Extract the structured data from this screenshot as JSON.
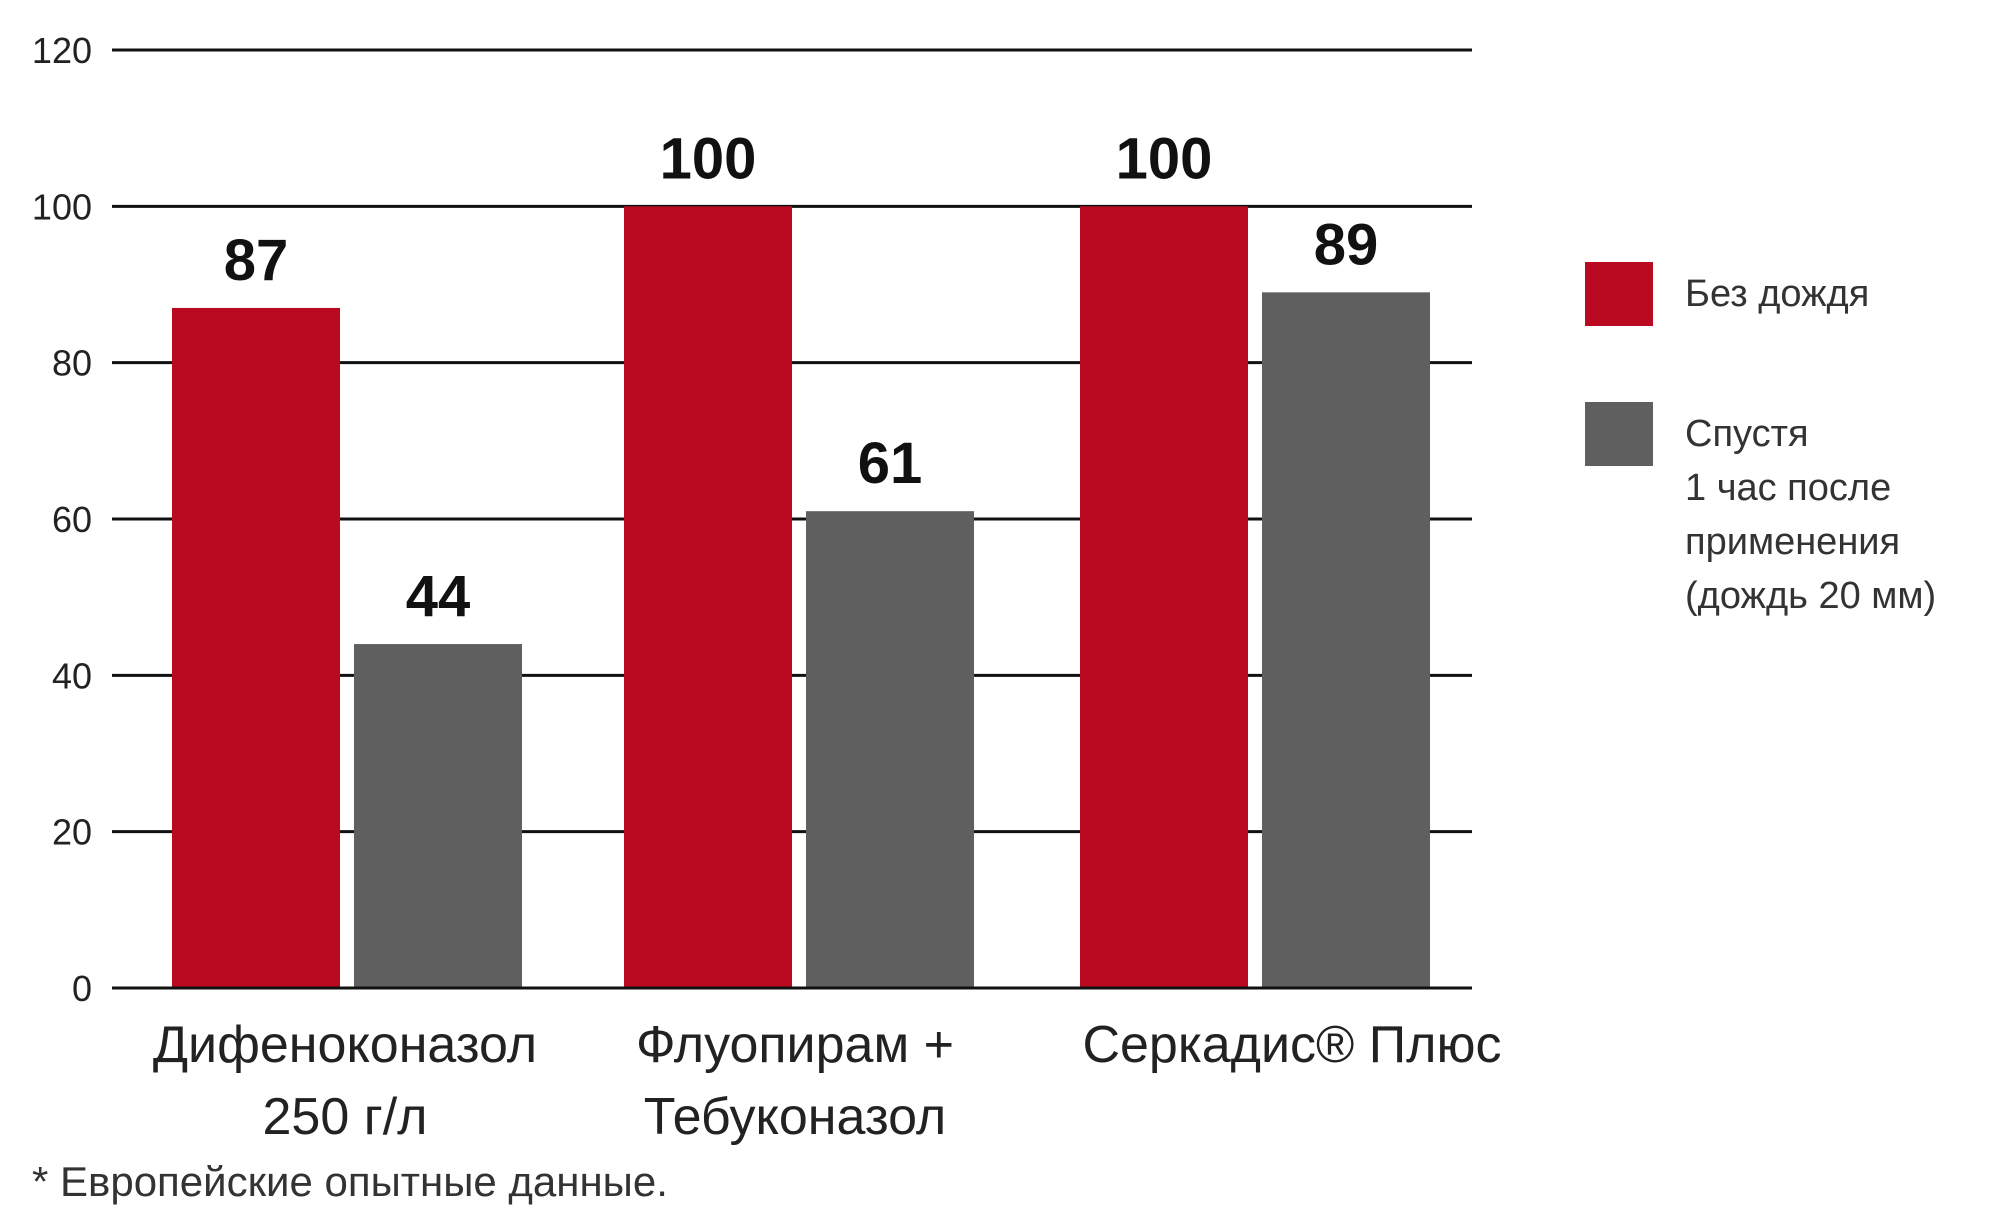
{
  "chart_data": {
    "type": "bar",
    "categories": [
      [
        "Дифеноконазол",
        "250 г/л"
      ],
      [
        "Флуопирам +",
        "Тебуконазол"
      ],
      [
        "Серкадис® Плюс"
      ]
    ],
    "series": [
      {
        "name": "Без дождя",
        "values": [
          87,
          100,
          100
        ],
        "color": "#b90a22"
      },
      {
        "name": [
          "Спустя",
          "1 час после",
          "применения",
          "(дождь 20 мм)"
        ],
        "values": [
          44,
          61,
          89
        ],
        "color": "#5f5f5f"
      }
    ],
    "ylim": [
      0,
      120
    ],
    "yticks": [
      "0",
      "20",
      "40",
      "60",
      "80",
      "100",
      "120"
    ],
    "grid": true,
    "legend_position": "right"
  },
  "footnote": "* Европейские опытные данные."
}
